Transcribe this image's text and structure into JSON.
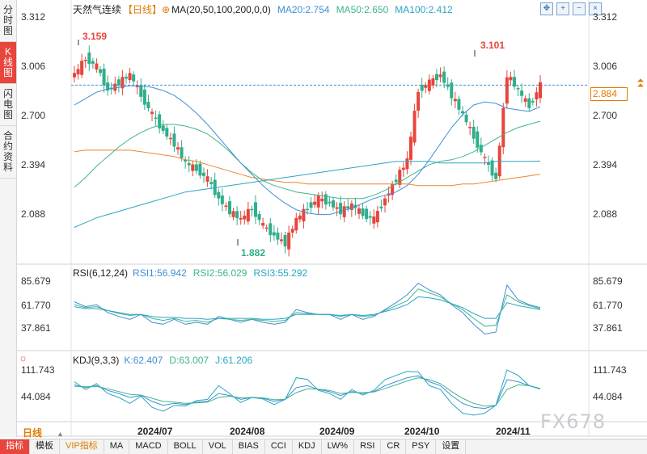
{
  "sidebar": {
    "tabs": [
      {
        "label": "分时图",
        "chars": [
          "分",
          "时",
          "图"
        ],
        "active": false
      },
      {
        "label": "K线图",
        "chars": [
          "K",
          "线",
          "图"
        ],
        "active": true
      },
      {
        "label": "闪电图",
        "chars": [
          "闪",
          "电",
          "图"
        ],
        "active": false
      },
      {
        "label": "合约资料",
        "chars": [
          "合",
          "约",
          "资",
          "料"
        ],
        "active": false
      }
    ]
  },
  "header": {
    "title": "天然气连续",
    "period": "【日线】",
    "ma_label": "MA(20,50,100,200,0,0)",
    "ma20": "MA20:2.754",
    "ma50": "MA50:2.650",
    "ma100": "MA100:2.412"
  },
  "toolbar_icons": [
    "move-icon",
    "zoom-in-icon",
    "zoom-out-icon",
    "close-icon"
  ],
  "price_axis": {
    "ticks": [
      "3.312",
      "3.006",
      "2.700",
      "2.394",
      "2.088"
    ],
    "current": "2.884"
  },
  "annotations": {
    "high1": "3.159",
    "high2": "3.101",
    "low": "1.882"
  },
  "rsi": {
    "label": "RSI(6,12,24)",
    "rsi1": "RSI1:56.942",
    "rsi2": "RSI2:56.029",
    "rsi3": "RSI3:55.292",
    "ticks": [
      "85.679",
      "61.770",
      "37.861"
    ]
  },
  "kdj": {
    "label": "KDJ(9,3,3)",
    "k": "K:62.407",
    "d": "D:63.007",
    "j": "J:61.206",
    "ticks": [
      "111.743",
      "44.084"
    ]
  },
  "x_axis": {
    "labels": [
      "2024/07",
      "2024/08",
      "2024/09",
      "2024/10",
      "2024/11"
    ]
  },
  "period_button": "日线",
  "tabbar": [
    "指标",
    "模板",
    "VIP指标",
    "MA",
    "MACD",
    "BOLL",
    "VOL",
    "BIAS",
    "CCI",
    "KDJ",
    "LW%",
    "RSI",
    "CR",
    "PSY",
    "设置"
  ],
  "watermark": "FX678",
  "colors": {
    "up": "#e8453c",
    "down": "#2fae8c",
    "ma20": "#3d8fd6",
    "ma50": "#3fb58a",
    "ma100": "#2aa5c4",
    "ma200": "#f0842c",
    "accent": "#e07b00"
  },
  "chart_data": {
    "type": "candlestick",
    "title": "天然气连续",
    "period": "日线",
    "ylim": [
      1.85,
      3.33
    ],
    "x_start": "2024/06",
    "x_end": "2024/11",
    "series": [
      {
        "name": "MA20",
        "values": [
          2.76,
          2.8,
          2.84,
          2.86,
          2.87,
          2.88,
          2.88,
          2.87,
          2.85,
          2.82,
          2.77,
          2.71,
          2.64,
          2.56,
          2.48,
          2.4,
          2.33,
          2.26,
          2.2,
          2.15,
          2.11,
          2.09,
          2.08,
          2.08,
          2.1,
          2.12,
          2.15,
          2.18,
          2.2,
          2.22,
          2.26,
          2.33,
          2.42,
          2.52,
          2.62,
          2.7,
          2.76,
          2.78,
          2.77,
          2.74,
          2.73,
          2.72,
          2.75
        ]
      },
      {
        "name": "MA50",
        "values": [
          2.25,
          2.31,
          2.38,
          2.44,
          2.5,
          2.55,
          2.59,
          2.62,
          2.64,
          2.64,
          2.63,
          2.61,
          2.58,
          2.53,
          2.47,
          2.4,
          2.34,
          2.29,
          2.26,
          2.24,
          2.22,
          2.21,
          2.2,
          2.19,
          2.18,
          2.18,
          2.18,
          2.2,
          2.23,
          2.27,
          2.31,
          2.35,
          2.39,
          2.41,
          2.42,
          2.44,
          2.47,
          2.51,
          2.55,
          2.59,
          2.62,
          2.64,
          2.66
        ]
      },
      {
        "name": "MA100",
        "values": [
          2.0,
          2.03,
          2.06,
          2.08,
          2.1,
          2.12,
          2.14,
          2.16,
          2.18,
          2.2,
          2.22,
          2.23,
          2.24,
          2.25,
          2.26,
          2.27,
          2.28,
          2.29,
          2.3,
          2.31,
          2.32,
          2.33,
          2.34,
          2.35,
          2.36,
          2.37,
          2.38,
          2.39,
          2.4,
          2.41,
          2.41,
          2.41,
          2.41,
          2.4,
          2.4,
          2.4,
          2.4,
          2.4,
          2.41,
          2.41,
          2.41,
          2.41,
          2.412
        ]
      },
      {
        "name": "MA200",
        "values": [
          2.47,
          2.48,
          2.48,
          2.48,
          2.48,
          2.48,
          2.47,
          2.46,
          2.45,
          2.44,
          2.42,
          2.41,
          2.39,
          2.37,
          2.35,
          2.33,
          2.31,
          2.3,
          2.29,
          2.28,
          2.28,
          2.27,
          2.27,
          2.27,
          2.27,
          2.27,
          2.27,
          2.27,
          2.27,
          2.27,
          2.27,
          2.26,
          2.26,
          2.26,
          2.26,
          2.27,
          2.27,
          2.28,
          2.29,
          2.3,
          2.31,
          2.32,
          2.33
        ]
      },
      {
        "name": "Close",
        "values": [
          2.95,
          3.05,
          3.0,
          2.85,
          2.9,
          2.95,
          2.82,
          2.7,
          2.6,
          2.52,
          2.4,
          2.36,
          2.3,
          2.18,
          2.1,
          2.05,
          2.12,
          2.01,
          1.95,
          1.9,
          2.05,
          2.12,
          2.18,
          2.15,
          2.1,
          2.14,
          2.08,
          2.05,
          2.18,
          2.3,
          2.42,
          2.85,
          2.9,
          2.95,
          2.82,
          2.7,
          2.56,
          2.42,
          2.3,
          2.95,
          2.85,
          2.75,
          2.884
        ]
      },
      {
        "name": "RSI1",
        "values": [
          63,
          58,
          60,
          52,
          48,
          45,
          50,
          42,
          40,
          45,
          40,
          42,
          40,
          48,
          45,
          42,
          45,
          42,
          40,
          42,
          55,
          52,
          50,
          50,
          45,
          50,
          45,
          48,
          55,
          62,
          70,
          82,
          75,
          70,
          60,
          52,
          40,
          30,
          32,
          80,
          65,
          60,
          57
        ]
      },
      {
        "name": "RSI2",
        "values": [
          60,
          57,
          58,
          54,
          51,
          49,
          50,
          46,
          44,
          46,
          43,
          44,
          42,
          46,
          45,
          44,
          45,
          44,
          43,
          44,
          52,
          51,
          50,
          50,
          48,
          50,
          48,
          49,
          54,
          59,
          64,
          76,
          72,
          68,
          61,
          55,
          46,
          38,
          39,
          70,
          63,
          59,
          56
        ]
      },
      {
        "name": "RSI3",
        "values": [
          58,
          56,
          56,
          54,
          52,
          50,
          50,
          48,
          47,
          47,
          46,
          46,
          45,
          46,
          46,
          46,
          46,
          45,
          45,
          46,
          50,
          50,
          50,
          50,
          49,
          50,
          49,
          50,
          53,
          56,
          60,
          68,
          67,
          65,
          61,
          57,
          51,
          46,
          46,
          62,
          59,
          57,
          55
        ]
      },
      {
        "name": "K",
        "values": [
          72,
          65,
          70,
          58,
          50,
          40,
          45,
          30,
          20,
          25,
          22,
          28,
          30,
          50,
          45,
          35,
          40,
          38,
          30,
          35,
          65,
          70,
          60,
          55,
          45,
          55,
          50,
          55,
          70,
          80,
          90,
          95,
          80,
          70,
          45,
          25,
          15,
          12,
          20,
          85,
          80,
          70,
          62
        ]
      },
      {
        "name": "D",
        "values": [
          68,
          67,
          68,
          62,
          55,
          48,
          46,
          38,
          30,
          28,
          25,
          26,
          28,
          40,
          43,
          39,
          40,
          39,
          34,
          35,
          52,
          62,
          61,
          58,
          50,
          53,
          52,
          54,
          63,
          72,
          82,
          90,
          85,
          75,
          55,
          38,
          25,
          18,
          20,
          60,
          72,
          70,
          63
        ]
      },
      {
        "name": "J",
        "values": [
          80,
          60,
          75,
          50,
          40,
          25,
          43,
          15,
          5,
          20,
          18,
          32,
          35,
          70,
          50,
          27,
          40,
          36,
          22,
          35,
          90,
          86,
          58,
          50,
          35,
          60,
          46,
          58,
          85,
          96,
          106,
          105,
          70,
          60,
          25,
          0,
          -5,
          0,
          20,
          110,
          96,
          70,
          61
        ]
      }
    ]
  }
}
